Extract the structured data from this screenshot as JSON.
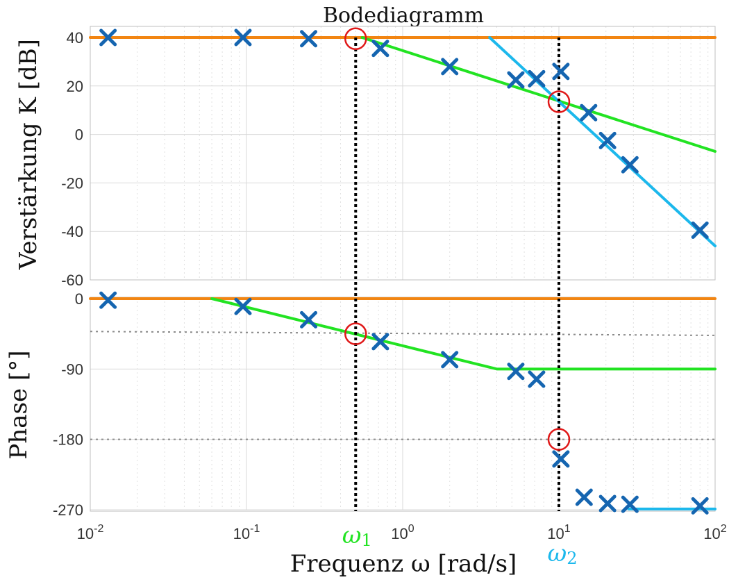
{
  "chart_data": {
    "type": "line",
    "title": "Bodediagramm",
    "xlabel": "Frequenz ω [rad/s]",
    "xscale": "log",
    "xlim": [
      0.01,
      100
    ],
    "x_ticks": [
      {
        "value": 0.01,
        "base": "10",
        "exp": "-2"
      },
      {
        "value": 0.1,
        "base": "10",
        "exp": "-1"
      },
      {
        "value": 1,
        "base": "10",
        "exp": "0"
      },
      {
        "value": 10,
        "base": "10",
        "exp": "1"
      },
      {
        "value": 100,
        "base": "10",
        "exp": "2"
      }
    ],
    "grid": true,
    "colors": {
      "orange": "#f28512",
      "green": "#22e322",
      "cyan": "#1cb8ec",
      "marker": "#1565b0",
      "circle": "#e01818",
      "vline": "#000000",
      "ref_line": "#8a8a8a"
    },
    "vlines": [
      {
        "x": 0.5,
        "label": "ω",
        "sub": "1",
        "label_color": "#22e322"
      },
      {
        "x": 10,
        "label": "ω",
        "sub": "2",
        "label_color": "#1cb8ec"
      }
    ],
    "magnitude": {
      "ylabel": "Verstärkung K [dB]",
      "ylim": [
        -60,
        40
      ],
      "yticks": [
        40,
        20,
        0,
        -20,
        -40,
        -60
      ],
      "measured": [
        {
          "x": 0.013,
          "y": 40
        },
        {
          "x": 0.095,
          "y": 40
        },
        {
          "x": 0.25,
          "y": 39.5
        },
        {
          "x": 0.72,
          "y": 35.5
        },
        {
          "x": 2.0,
          "y": 28
        },
        {
          "x": 5.3,
          "y": 22.5
        },
        {
          "x": 7.2,
          "y": 23
        },
        {
          "x": 10.3,
          "y": 26
        },
        {
          "x": 15.5,
          "y": 9
        },
        {
          "x": 20.5,
          "y": -2.5
        },
        {
          "x": 28.5,
          "y": -12.5
        },
        {
          "x": 80,
          "y": -39.5
        }
      ],
      "asymptotes": [
        {
          "color_key": "orange",
          "points": [
            [
              0.01,
              40
            ],
            [
              100,
              40
            ]
          ]
        },
        {
          "color_key": "green",
          "points": [
            [
              0.55,
              40
            ],
            [
              100,
              -7
            ]
          ]
        },
        {
          "color_key": "cyan",
          "points": [
            [
              3.6,
              40
            ],
            [
              100,
              -46
            ]
          ]
        }
      ],
      "circles": [
        {
          "x": 0.5,
          "y": 39.5
        },
        {
          "x": 10,
          "y": 13.5
        }
      ]
    },
    "phase": {
      "ylabel": "Phase [°]",
      "ylim": [
        -270,
        0
      ],
      "yticks": [
        0,
        -90,
        -180,
        -270
      ],
      "measured": [
        {
          "x": 0.013,
          "y": -2
        },
        {
          "x": 0.095,
          "y": -10
        },
        {
          "x": 0.25,
          "y": -27
        },
        {
          "x": 0.72,
          "y": -55
        },
        {
          "x": 2.0,
          "y": -78
        },
        {
          "x": 5.3,
          "y": -93
        },
        {
          "x": 7.2,
          "y": -103
        },
        {
          "x": 10.3,
          "y": -205
        },
        {
          "x": 14.5,
          "y": -254
        },
        {
          "x": 20.5,
          "y": -262
        },
        {
          "x": 28.5,
          "y": -263
        },
        {
          "x": 80,
          "y": -265
        }
      ],
      "asymptotes": [
        {
          "color_key": "orange",
          "points": [
            [
              0.01,
              0
            ],
            [
              100,
              0
            ]
          ]
        },
        {
          "color_key": "green",
          "points": [
            [
              0.06,
              0
            ],
            [
              4,
              -90
            ],
            [
              100,
              -90
            ]
          ]
        },
        {
          "color_key": "cyan",
          "points": [
            [
              28,
              -269
            ],
            [
              100,
              -269
            ]
          ]
        }
      ],
      "ref_lines": [
        {
          "points": [
            [
              0.01,
              -42
            ],
            [
              100,
              -47
            ]
          ]
        },
        {
          "points": [
            [
              0.01,
              -180
            ],
            [
              100,
              -180
            ]
          ]
        }
      ],
      "circles": [
        {
          "x": 0.5,
          "y": -45
        },
        {
          "x": 10,
          "y": -180
        }
      ]
    }
  }
}
